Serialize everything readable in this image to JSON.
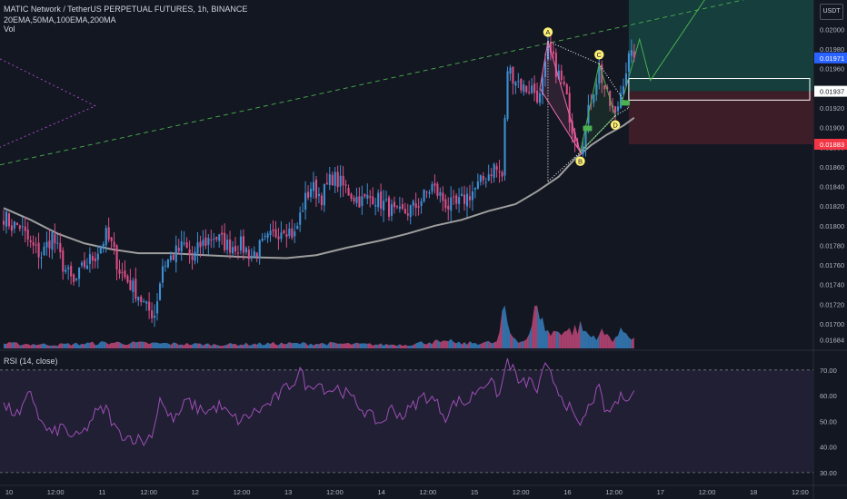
{
  "header": {
    "symbol_line": "MATIC Network / TetherUS PERPETUAL FUTURES, 1h, BINANCE",
    "indicators_line": "20EMA,50MA,100EMA,200MA",
    "volume_label": "Vol",
    "rsi_label": "RSI (14, close)",
    "currency_badge": "USDT"
  },
  "colors": {
    "background": "#131722",
    "bull": "#3c8fd4",
    "bear": "#d94f86",
    "ma_line": "#9e9e9e",
    "rsi_line": "#9c4fb6",
    "rsi_band": "#211f33",
    "target_zone": "#153e3c",
    "stop_zone": "#3d1d27",
    "last_price_tag": "#2962ff",
    "stop_tag": "#f23645",
    "pattern_green": "#4caf50",
    "pattern_pink": "#f06ab0",
    "pattern_yellow": "#fff176"
  },
  "chart_data": [
    {
      "type": "candlestick",
      "ylim": [
        0.01675,
        0.0203
      ],
      "price_scale_labels": [
        "0.02000",
        "0.01980",
        "0.01960",
        "0.01940",
        "0.01920",
        "0.01900",
        "0.01880",
        "0.01860",
        "0.01840",
        "0.01820",
        "0.01800",
        "0.01780",
        "0.01760",
        "0.01740",
        "0.01720",
        "0.01700",
        "0.01684"
      ],
      "time_labels": [
        "10",
        "12:00",
        "11",
        "12:00",
        "12",
        "12:00",
        "13",
        "12:00",
        "14",
        "12:00",
        "15",
        "12:00",
        "16",
        "12:00",
        "17",
        "12:00",
        "18",
        "12:00"
      ],
      "price_tags": [
        {
          "value": 0.01971,
          "label": "0.01971",
          "role": "last"
        },
        {
          "value": 0.01937,
          "label": "0.01937",
          "role": "entry"
        },
        {
          "value": 0.01883,
          "label": "0.01883",
          "role": "stop"
        }
      ],
      "moving_average": [
        [
          0,
          0.01818
        ],
        [
          10,
          0.01806
        ],
        [
          20,
          0.01792
        ],
        [
          30,
          0.01782
        ],
        [
          40,
          0.01776
        ],
        [
          50,
          0.01772
        ],
        [
          62,
          0.01772
        ],
        [
          75,
          0.0177
        ],
        [
          90,
          0.01768
        ],
        [
          105,
          0.01767
        ],
        [
          116,
          0.0177
        ],
        [
          128,
          0.01778
        ],
        [
          140,
          0.01785
        ],
        [
          150,
          0.01792
        ],
        [
          160,
          0.018
        ],
        [
          170,
          0.01806
        ],
        [
          180,
          0.01815
        ],
        [
          190,
          0.01822
        ],
        [
          198,
          0.01835
        ],
        [
          206,
          0.0185
        ],
        [
          212,
          0.01868
        ],
        [
          218,
          0.01882
        ],
        [
          224,
          0.01893
        ],
        [
          230,
          0.01902
        ],
        [
          234,
          0.0191
        ]
      ],
      "pattern_points": [
        {
          "label": "A",
          "bar": 202,
          "price": 0.01988
        },
        {
          "label": "B",
          "bar": 214,
          "price": 0.01875
        },
        {
          "label": "C",
          "bar": 221,
          "price": 0.01965
        },
        {
          "label": "D",
          "bar": 227,
          "price": 0.01912
        }
      ],
      "position": {
        "entry": 0.01937,
        "stop": 0.01883,
        "target_top": 0.0203
      },
      "candles": {
        "count": 235,
        "anchors": [
          [
            0,
            0.0181
          ],
          [
            3,
            0.018
          ],
          [
            6,
            0.018
          ],
          [
            10,
            0.0178
          ],
          [
            14,
            0.0177
          ],
          [
            18,
            0.0179
          ],
          [
            22,
            0.0176
          ],
          [
            26,
            0.0174
          ],
          [
            30,
            0.0176
          ],
          [
            34,
            0.0177
          ],
          [
            38,
            0.0179
          ],
          [
            40,
            0.0178
          ],
          [
            43,
            0.01755
          ],
          [
            47,
            0.0174
          ],
          [
            50,
            0.0173
          ],
          [
            53,
            0.01715
          ],
          [
            56,
            0.0171
          ],
          [
            59,
            0.0176
          ],
          [
            63,
            0.0177
          ],
          [
            67,
            0.0178
          ],
          [
            70,
            0.01765
          ],
          [
            73,
            0.0178
          ],
          [
            78,
            0.0179
          ],
          [
            83,
            0.0178
          ],
          [
            88,
            0.0178
          ],
          [
            92,
            0.0177
          ],
          [
            96,
            0.0178
          ],
          [
            100,
            0.0179
          ],
          [
            104,
            0.018
          ],
          [
            108,
            0.0179
          ],
          [
            111,
            0.0182
          ],
          [
            114,
            0.0184
          ],
          [
            118,
            0.0183
          ],
          [
            122,
            0.0185
          ],
          [
            126,
            0.0184
          ],
          [
            130,
            0.0183
          ],
          [
            133,
            0.01825
          ],
          [
            137,
            0.0183
          ],
          [
            142,
            0.0182
          ],
          [
            146,
            0.0181
          ],
          [
            150,
            0.01815
          ],
          [
            153,
            0.0182
          ],
          [
            156,
            0.0183
          ],
          [
            159,
            0.0184
          ],
          [
            162,
            0.0183
          ],
          [
            165,
            0.0182
          ],
          [
            168,
            0.0182
          ],
          [
            172,
            0.0183
          ],
          [
            176,
            0.0184
          ],
          [
            179,
            0.0185
          ],
          [
            182,
            0.0186
          ],
          [
            185,
            0.0185
          ],
          [
            187,
            0.0196
          ],
          [
            190,
            0.0195
          ],
          [
            193,
            0.0194
          ],
          [
            196,
            0.0194
          ],
          [
            199,
            0.0193
          ],
          [
            201,
            0.0196
          ],
          [
            202,
            0.0198
          ],
          [
            205,
            0.0196
          ],
          [
            208,
            0.0194
          ],
          [
            211,
            0.019
          ],
          [
            214,
            0.0188
          ],
          [
            216,
            0.019
          ],
          [
            218,
            0.0193
          ],
          [
            221,
            0.0196
          ],
          [
            224,
            0.0193
          ],
          [
            227,
            0.0191
          ],
          [
            230,
            0.0195
          ],
          [
            232,
            0.0197
          ],
          [
            234,
            0.01971
          ]
        ]
      },
      "volume": {
        "anchors": [
          [
            0,
            0.05
          ],
          [
            20,
            0.04
          ],
          [
            40,
            0.06
          ],
          [
            60,
            0.05
          ],
          [
            80,
            0.04
          ],
          [
            100,
            0.05
          ],
          [
            120,
            0.05
          ],
          [
            140,
            0.04
          ],
          [
            150,
            0.04
          ],
          [
            158,
            0.07
          ],
          [
            163,
            0.06
          ],
          [
            170,
            0.05
          ],
          [
            176,
            0.06
          ],
          [
            183,
            0.06
          ],
          [
            186,
            0.4
          ],
          [
            188,
            0.16
          ],
          [
            192,
            0.07
          ],
          [
            195,
            0.12
          ],
          [
            198,
            0.45
          ],
          [
            200,
            0.26
          ],
          [
            203,
            0.14
          ],
          [
            206,
            0.2
          ],
          [
            210,
            0.18
          ],
          [
            214,
            0.22
          ],
          [
            218,
            0.12
          ],
          [
            222,
            0.16
          ],
          [
            226,
            0.1
          ],
          [
            230,
            0.18
          ],
          [
            234,
            0.12
          ]
        ],
        "spikes": [
          [
            161,
            0.09
          ],
          [
            166,
            0.1
          ],
          [
            186,
            0.4
          ],
          [
            198,
            0.45
          ],
          [
            210,
            0.2
          ],
          [
            214,
            0.22
          ],
          [
            231,
            0.16
          ]
        ]
      }
    },
    {
      "type": "line",
      "title": "RSI (14, close)",
      "ylim": [
        25,
        77
      ],
      "levels": [
        70,
        30
      ],
      "scale_labels": [
        "70.00",
        "60.00",
        "50.00",
        "40.00",
        "30.00"
      ],
      "anchors": [
        [
          0,
          56
        ],
        [
          6,
          52
        ],
        [
          10,
          62
        ],
        [
          14,
          49
        ],
        [
          18,
          45
        ],
        [
          22,
          48
        ],
        [
          26,
          43
        ],
        [
          30,
          46
        ],
        [
          34,
          53
        ],
        [
          38,
          55
        ],
        [
          42,
          46
        ],
        [
          46,
          44
        ],
        [
          50,
          43
        ],
        [
          53,
          42
        ],
        [
          56,
          48
        ],
        [
          58,
          60
        ],
        [
          61,
          52
        ],
        [
          64,
          51
        ],
        [
          68,
          58
        ],
        [
          72,
          55
        ],
        [
          76,
          54
        ],
        [
          80,
          56
        ],
        [
          84,
          52
        ],
        [
          88,
          50
        ],
        [
          92,
          53
        ],
        [
          96,
          55
        ],
        [
          100,
          58
        ],
        [
          104,
          62
        ],
        [
          108,
          66
        ],
        [
          110,
          70
        ],
        [
          113,
          62
        ],
        [
          116,
          66
        ],
        [
          120,
          62
        ],
        [
          124,
          63
        ],
        [
          128,
          60
        ],
        [
          132,
          56
        ],
        [
          136,
          52
        ],
        [
          140,
          49
        ],
        [
          144,
          55
        ],
        [
          148,
          52
        ],
        [
          152,
          56
        ],
        [
          156,
          60
        ],
        [
          160,
          58
        ],
        [
          164,
          52
        ],
        [
          168,
          58
        ],
        [
          172,
          57
        ],
        [
          176,
          63
        ],
        [
          180,
          66
        ],
        [
          184,
          60
        ],
        [
          187,
          74
        ],
        [
          189,
          70
        ],
        [
          192,
          64
        ],
        [
          195,
          66
        ],
        [
          198,
          62
        ],
        [
          201,
          71
        ],
        [
          204,
          66
        ],
        [
          207,
          60
        ],
        [
          210,
          55
        ],
        [
          213,
          48
        ],
        [
          216,
          52
        ],
        [
          218,
          58
        ],
        [
          221,
          62
        ],
        [
          224,
          52
        ],
        [
          226,
          56
        ],
        [
          228,
          58
        ],
        [
          230,
          60
        ],
        [
          234,
          61
        ]
      ]
    }
  ]
}
